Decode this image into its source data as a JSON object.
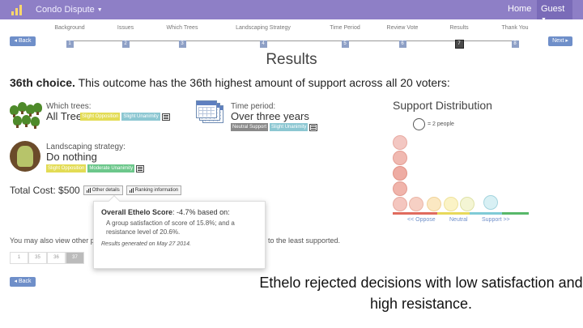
{
  "app": {
    "brand": "Condo Dispute",
    "home": "Home",
    "guest": "Guest"
  },
  "steps": [
    {
      "label": "Background",
      "num": "1"
    },
    {
      "label": "Issues",
      "num": "2"
    },
    {
      "label": "Which Trees",
      "num": "3"
    },
    {
      "label": "Landscaping Strategy",
      "num": "4"
    },
    {
      "label": "Time Period",
      "num": "5"
    },
    {
      "label": "Review Vote",
      "num": "6"
    },
    {
      "label": "Results",
      "num": "7"
    },
    {
      "label": "Thank You",
      "num": "8"
    }
  ],
  "nav": {
    "back": "◂ Back",
    "next": "Next ▸"
  },
  "page": {
    "title": "Results",
    "choice_rank": "36th choice.",
    "choice_text": "This outcome has the 36th highest amount of support across all 20 voters:"
  },
  "options": {
    "trees": {
      "label": "Which trees:",
      "value": "All Trees",
      "tag1": "Slight Opposition",
      "tag2": "Slight Unanimity"
    },
    "period": {
      "label": "Time period:",
      "value": "Over three years",
      "tag1": "Neutral Support",
      "tag2": "Slight Unanimity"
    },
    "landscaping": {
      "label": "Landscaping strategy:",
      "value": "Do nothing",
      "tag1": "Slight Opposition",
      "tag2": "Moderate Unanimity"
    }
  },
  "total": {
    "text": "Total Cost: $500",
    "details_btn": "Other details",
    "ranking_btn": "Ranking information"
  },
  "popover": {
    "head_label": "Overall Ethelo Score",
    "head_value": ": -4.7% based on:",
    "body": "A group satisfaction of score of 15.8%; and a resistance level of 20.6%.",
    "foot": "Results generated on May 27 2014."
  },
  "also": {
    "text": "You may also view other p",
    "tail": "to the least supported.",
    "pages": [
      "1",
      "35",
      "36",
      "37"
    ]
  },
  "support": {
    "title": "Support Distribution",
    "legend": "= 2 people",
    "label_oppose": "<< Oppose",
    "label_neutral": "Neutral",
    "label_support": "Support >>"
  },
  "caption": "Ethelo rejected decisions with low satisfaction and high resistance.",
  "colors": {
    "navbar": "#8e7fc6",
    "oppose": "#e6a49e",
    "neutral": "#f0e39a",
    "support": "#a8dce6"
  }
}
